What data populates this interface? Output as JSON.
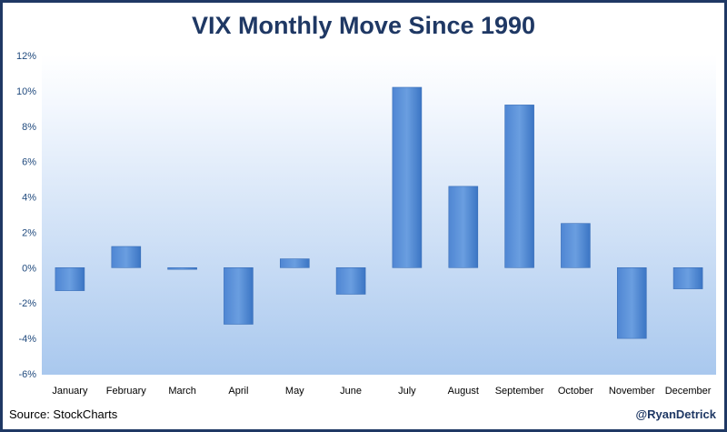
{
  "chart_data": {
    "type": "bar",
    "title": "VIX Monthly Move Since 1990",
    "xlabel": "",
    "ylabel": "",
    "categories": [
      "January",
      "February",
      "March",
      "April",
      "May",
      "June",
      "July",
      "August",
      "September",
      "October",
      "November",
      "December"
    ],
    "values": [
      -1.3,
      1.2,
      -0.1,
      -3.2,
      0.5,
      -1.5,
      10.2,
      4.6,
      9.2,
      2.5,
      -4.0,
      -1.2
    ],
    "ylim": [
      -6,
      12
    ],
    "yticks": [
      12,
      10,
      8,
      6,
      4,
      2,
      0,
      -2,
      -4,
      -6
    ],
    "ytick_labels": [
      "12%",
      "10%",
      "8%",
      "6%",
      "4%",
      "2%",
      "0%",
      "-2%",
      "-4%",
      "-6%"
    ],
    "grid": false,
    "legend": "none",
    "colors": {
      "bar_top": "#6a9ee0",
      "bar_bottom": "#3b75c4",
      "bg_gradient_top": "#ffffff",
      "bg_gradient_bottom": "#a9c8ee",
      "title": "#1f3864"
    }
  },
  "footer": {
    "source": "Source:  StockCharts",
    "handle": "@RyanDetrick"
  }
}
